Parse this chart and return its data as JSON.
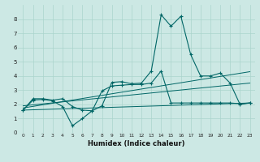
{
  "xlabel": "Humidex (Indice chaleur)",
  "bg_color": "#cce8e4",
  "grid_color": "#aad4cc",
  "line_color": "#006666",
  "xlim": [
    -0.5,
    23.5
  ],
  "ylim": [
    0,
    9
  ],
  "xticks": [
    0,
    1,
    2,
    3,
    4,
    5,
    6,
    7,
    8,
    9,
    10,
    11,
    12,
    13,
    14,
    15,
    16,
    17,
    18,
    19,
    20,
    21,
    22,
    23
  ],
  "yticks": [
    0,
    1,
    2,
    3,
    4,
    5,
    6,
    7,
    8
  ],
  "line1_x": [
    0,
    1,
    2,
    3,
    4,
    5,
    6,
    7,
    8,
    9,
    10,
    11,
    12,
    13,
    14,
    15,
    16,
    17,
    18,
    19,
    20,
    21,
    22,
    23
  ],
  "line1_y": [
    1.6,
    2.4,
    2.4,
    2.3,
    2.4,
    1.85,
    1.6,
    1.55,
    1.9,
    3.55,
    3.6,
    3.45,
    3.5,
    4.35,
    8.3,
    7.5,
    8.2,
    5.5,
    4.0,
    4.0,
    4.2,
    3.5,
    2.0,
    2.1
  ],
  "line2_x": [
    0,
    1,
    2,
    3,
    4,
    5,
    6,
    7,
    8,
    9,
    10,
    11,
    12,
    13,
    14,
    15,
    16,
    17,
    18,
    19,
    20,
    21,
    22,
    23
  ],
  "line2_y": [
    1.6,
    2.3,
    2.35,
    2.25,
    1.85,
    0.5,
    1.0,
    1.55,
    2.95,
    3.3,
    3.35,
    3.4,
    3.4,
    3.5,
    4.35,
    2.1,
    2.1,
    2.1,
    2.1,
    2.1,
    2.1,
    2.1,
    2.05,
    2.1
  ],
  "line3_x": [
    0,
    23
  ],
  "line3_y": [
    1.9,
    3.5
  ],
  "line4_x": [
    0,
    23
  ],
  "line4_y": [
    1.75,
    4.3
  ],
  "line5_x": [
    0,
    23
  ],
  "line5_y": [
    1.6,
    2.1
  ]
}
